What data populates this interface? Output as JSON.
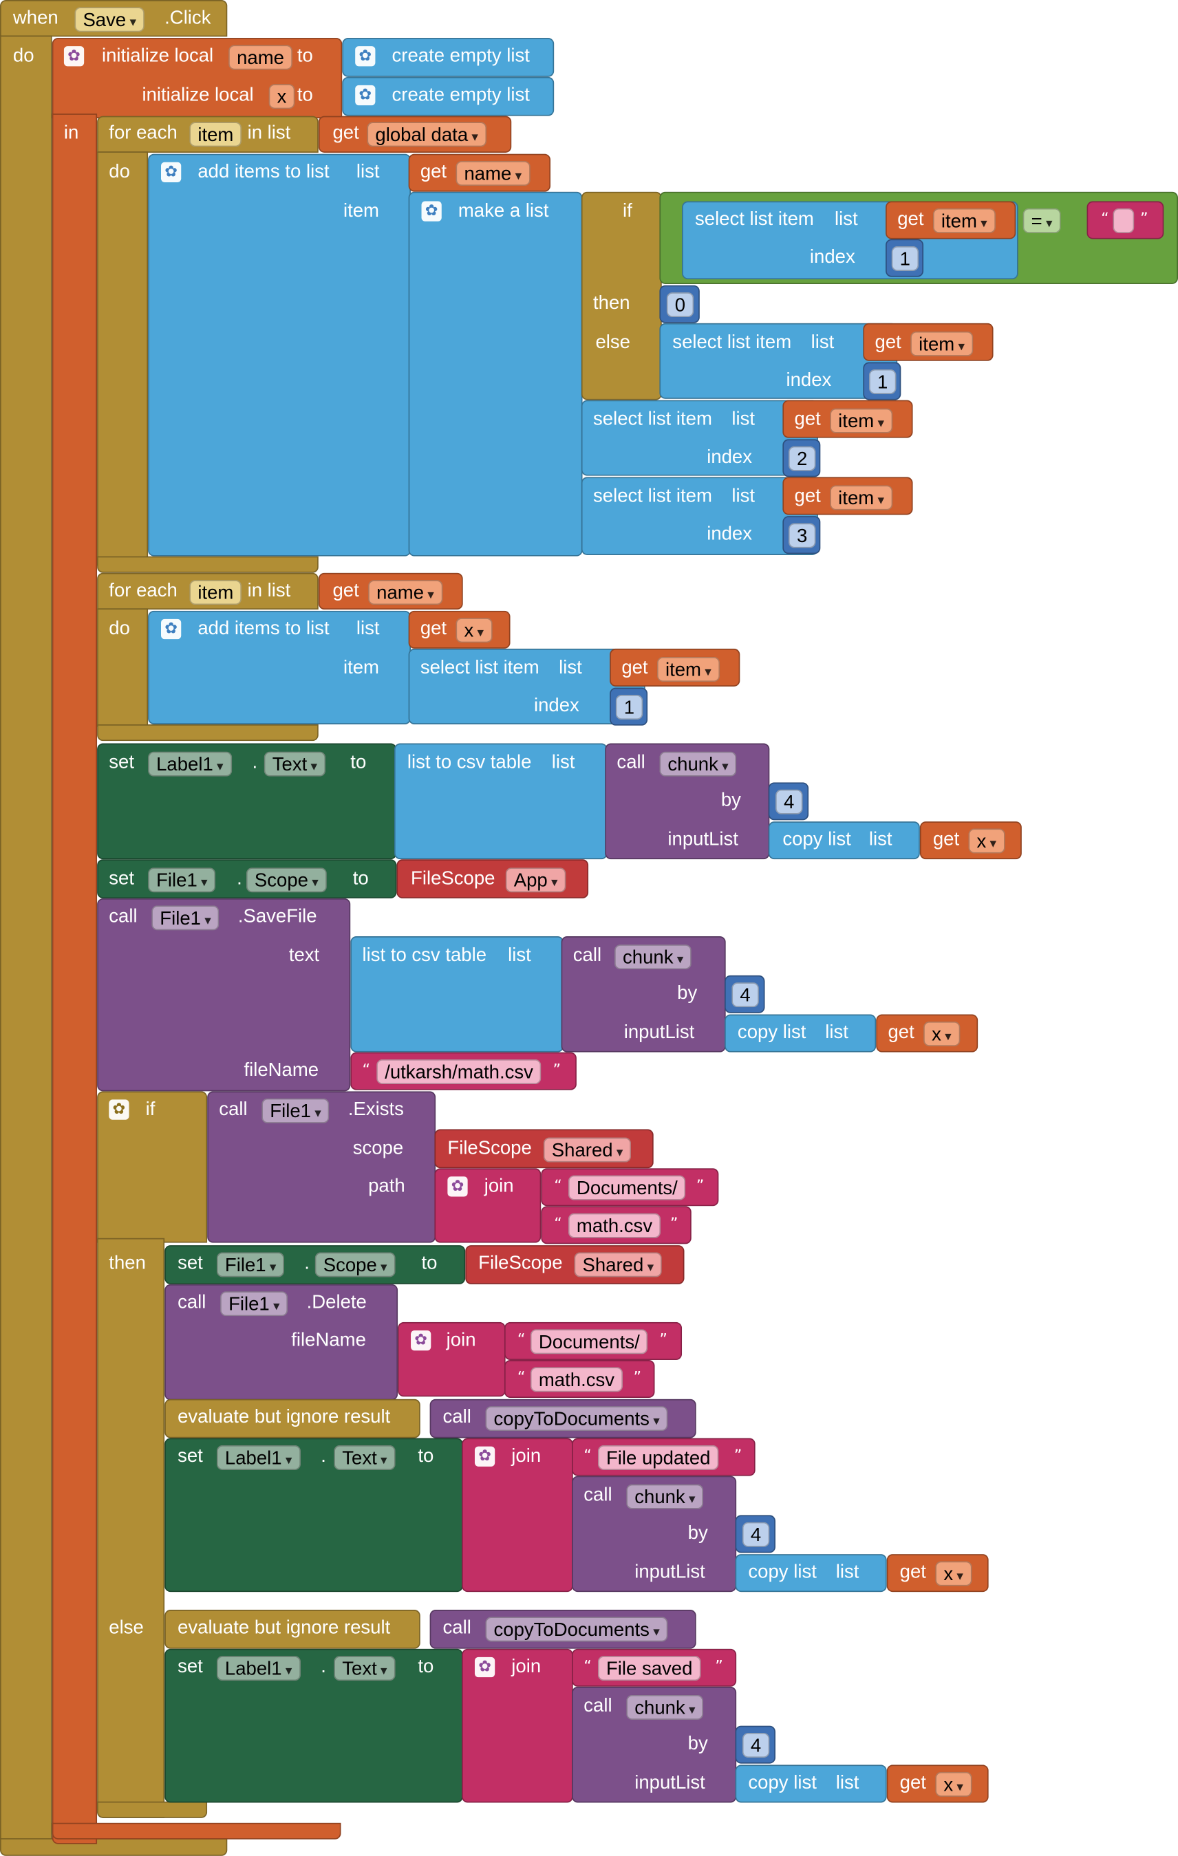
{
  "event": {
    "when": "when",
    "component": "Save",
    "event": ".Click",
    "do": "do"
  },
  "init": {
    "label": "initialize local",
    "to": "to",
    "in": "in",
    "var1": "name",
    "var2": "x",
    "create": "create empty list"
  },
  "loop1": {
    "for_each": "for each",
    "var": "item",
    "in_list": "in list",
    "do": "do",
    "get": "get",
    "source": "global data"
  },
  "add1": {
    "label": "add items to list",
    "list": "list",
    "item": "item",
    "get": "get",
    "target": "name"
  },
  "make": {
    "label": "make a list"
  },
  "cond": {
    "if": "if",
    "then": "then",
    "else": "else",
    "eq": "=",
    "empty": "",
    "then_val": "0"
  },
  "sel": {
    "label": "select list item",
    "list": "list",
    "index": "index",
    "get": "get",
    "var": "item",
    "i1": "1",
    "i2": "2",
    "i3": "3"
  },
  "loop2": {
    "for_each": "for each",
    "var": "item",
    "in_list": "in list",
    "do": "do",
    "get": "get",
    "source": "name"
  },
  "add2": {
    "label": "add items to list",
    "list": "list",
    "item": "item",
    "get": "get",
    "target": "x"
  },
  "set_label_top": {
    "set": "set",
    "comp": "Label1",
    "dot": ".",
    "prop": "Text",
    "to": "to"
  },
  "csv": {
    "label": "list to csv table",
    "list": "list"
  },
  "chunk": {
    "call": "call",
    "name": "chunk",
    "by": "by",
    "by_val": "4",
    "input": "inputList"
  },
  "copy": {
    "label": "copy list",
    "list": "list",
    "get": "get",
    "var": "x"
  },
  "scope_set": {
    "set": "set",
    "comp": "File1",
    "dot": ".",
    "prop": "Scope",
    "to": "to",
    "fs": "FileScope",
    "val": "App"
  },
  "save": {
    "call": "call",
    "comp": "File1",
    "method": ".SaveFile",
    "text": "text",
    "fileName": "fileName",
    "path": "/utkarsh/math.csv"
  },
  "if2": {
    "if": "if",
    "then": "then",
    "else": "else"
  },
  "exists": {
    "call": "call",
    "comp": "File1",
    "method": ".Exists",
    "scope": "scope",
    "path": "path",
    "fs": "FileScope",
    "val": "Shared"
  },
  "join": {
    "label": "join",
    "docs": "Documents/",
    "file": "math.csv"
  },
  "set_scope2": {
    "set": "set",
    "comp": "File1",
    "dot": ".",
    "prop": "Scope",
    "to": "to",
    "fs": "FileScope",
    "val": "Shared"
  },
  "delete": {
    "call": "call",
    "comp": "File1",
    "method": ".Delete",
    "fileName": "fileName"
  },
  "evaluate": {
    "label": "evaluate but ignore result",
    "call": "call",
    "proc": "copyToDocuments"
  },
  "set_label": {
    "set": "set",
    "comp": "Label1",
    "dot": ".",
    "prop": "Text",
    "to": "to"
  },
  "msgs": {
    "updated": "File updated",
    "saved": "File saved"
  },
  "colors": {
    "control": "#b18e35",
    "variables": "#d05f2d",
    "lists": "#4ca6d9",
    "logic": "#67a13e",
    "component_set": "#266643",
    "procedure": "#7c508a",
    "text": "#c22f65",
    "math": "#3f71b5",
    "filescope": "#c13b3b"
  }
}
